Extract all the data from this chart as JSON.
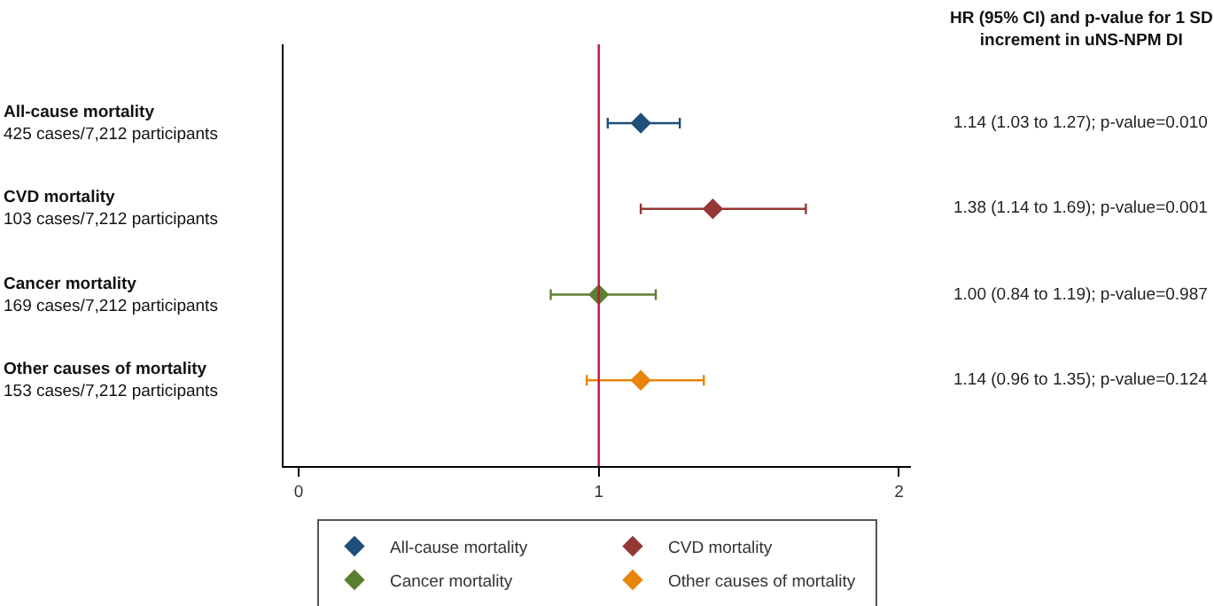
{
  "chart_data": {
    "type": "scatter",
    "orientation": "horizontal",
    "categories": [
      "All-cause mortality\n425 cases/7,212 participants",
      "CVD mortality\n103 cases/7,212 participants",
      "Cancer mortality\n169 cases/7,212 participants",
      "Other causes of mortality\n153 cases/7,212 participants"
    ],
    "series": [
      {
        "name": "All-cause mortality",
        "color": "#1f4e79",
        "values": [
          1.14,
          null,
          null,
          null
        ],
        "errors": [
          [
            1.03,
            1.27
          ],
          null,
          null,
          null
        ]
      },
      {
        "name": "CVD mortality",
        "color": "#953735",
        "values": [
          null,
          1.38,
          null,
          null
        ],
        "errors": [
          null,
          [
            1.14,
            1.69
          ],
          null,
          null
        ]
      },
      {
        "name": "Cancer mortality",
        "color": "#5a7f2e",
        "values": [
          null,
          null,
          1.0,
          null
        ],
        "errors": [
          null,
          null,
          [
            0.84,
            1.19
          ],
          null
        ]
      },
      {
        "name": "Other causes of mortality",
        "color": "#e8850c",
        "values": [
          null,
          null,
          null,
          1.14
        ],
        "errors": [
          null,
          null,
          null,
          [
            0.96,
            1.35
          ]
        ]
      }
    ],
    "xlim": [
      -0.05,
      2.04
    ],
    "xticks": [
      0,
      1,
      2
    ],
    "ref_lines": [
      {
        "axis": "x",
        "value": 1,
        "color": "#c0143c"
      }
    ],
    "annotations": [
      "HR (95% CI) and p-value for 1 SD\nincrement in uNS-NPM DI",
      "1.14 (1.03 to 1.27); p-value=0.010",
      "1.38 (1.14 to 1.69); p-value=0.001",
      "1.00 (0.84 to 1.19); p-value=0.987",
      "1.14 (0.96 to 1.35); p-value=0.124"
    ],
    "legend": "bottom",
    "marker": "diamond",
    "tick_labels": "x"
  }
}
